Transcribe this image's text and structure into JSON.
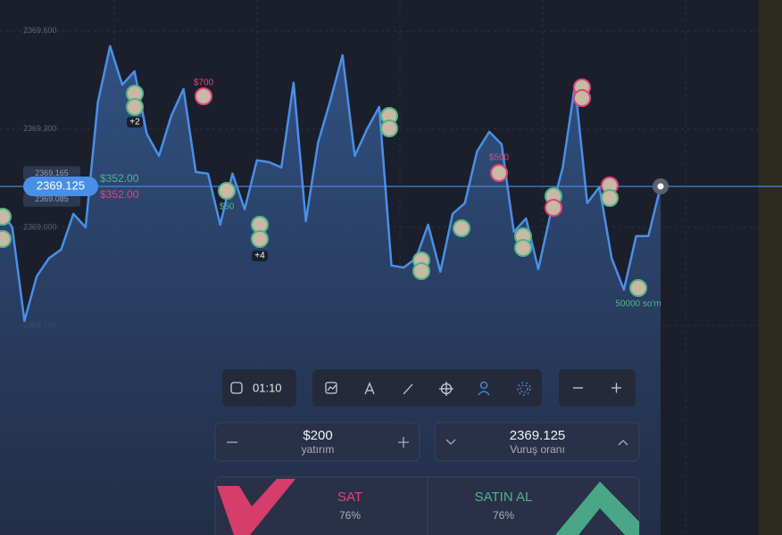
{
  "chart_data": {
    "type": "line",
    "series": [
      {
        "color": "#4a8fe7",
        "values": [
          2369.055,
          2369.0,
          2368.714,
          2368.85,
          2368.905,
          2368.932,
          2369.041,
          2369.0,
          2369.382,
          2369.554,
          2369.436,
          2369.477,
          2369.286,
          2369.218,
          2369.341,
          2369.423,
          2369.169,
          2369.164,
          2369.008,
          2369.164,
          2369.055,
          2369.205,
          2369.199,
          2369.183,
          2369.442,
          2369.019,
          2369.259,
          2369.387,
          2369.526,
          2369.218,
          2369.3,
          2369.368,
          2368.883,
          2368.877,
          2368.905,
          2369.008,
          2368.864,
          2369.041,
          2369.074,
          2369.232,
          2369.292,
          2369.254,
          2368.986,
          2369.027,
          2368.872,
          2369.041,
          2369.183,
          2369.436,
          2369.074,
          2369.123,
          2368.905,
          2368.809,
          2368.973,
          2368.973,
          2369.125
        ]
      }
    ],
    "ylim": [
      2368.059,
      2369.695
    ],
    "yticks": [
      {
        "value": 2369.6,
        "label": "2369.600"
      },
      {
        "value": 2369.3,
        "label": "2369.300"
      },
      {
        "value": 2369.0,
        "label": "2369.000"
      },
      {
        "value": 2368.7,
        "label": "2368.700"
      }
    ],
    "grid": true,
    "current_price": 2369.125,
    "ghost_prices": [
      2369.165,
      2369.085
    ],
    "pnl_up": "$352.00",
    "pnl_down": "$352.00",
    "annotations": [
      {
        "text": "$700",
        "color": "#e0457b"
      },
      {
        "text": "+2",
        "color": "#ffffff"
      },
      {
        "text": "$50",
        "color": "#4fb58a"
      },
      {
        "text": "+4",
        "color": "#ffffff"
      },
      {
        "text": "$500",
        "color": "#e0457b"
      },
      {
        "text": "50000 so'm",
        "color": "#4fb58a"
      }
    ]
  },
  "panel": {
    "timer": "01:10",
    "amount": "$200",
    "amount_label": "yatırım",
    "strike": "2369.125",
    "strike_label": "Vuruş oranı",
    "sell": {
      "label": "SAT",
      "payout": "76%"
    },
    "buy": {
      "label": "SATIN AL",
      "payout": "76%"
    }
  }
}
